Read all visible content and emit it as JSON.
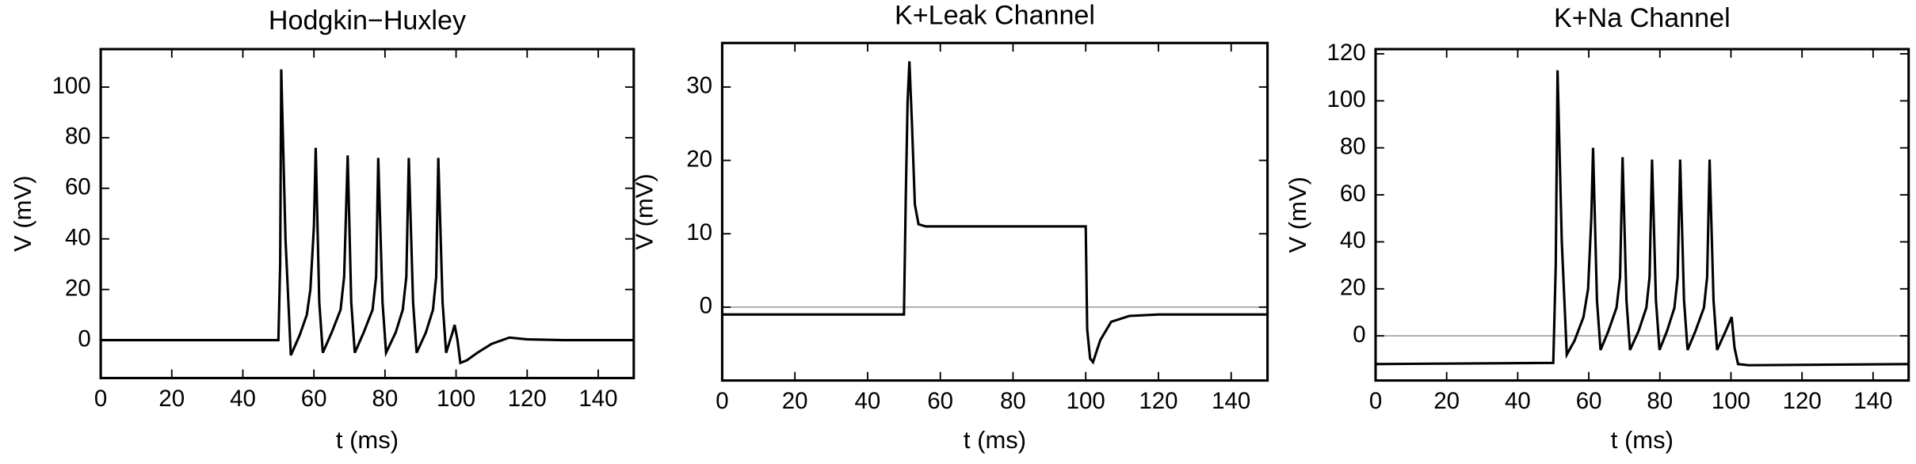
{
  "chart_data": [
    {
      "type": "line",
      "title": "Hodgkin−Huxley",
      "x_label": "t (ms)",
      "y_label": "V (mV)",
      "xlim": [
        0,
        150
      ],
      "ylim": [
        -15,
        115
      ],
      "xticks": [
        0,
        20,
        40,
        60,
        80,
        100,
        120,
        140
      ],
      "yticks": [
        0,
        20,
        40,
        60,
        80,
        100
      ],
      "zero_line": false,
      "x": [
        0,
        50,
        50.5,
        50.8,
        52,
        53.5,
        56,
        58,
        59,
        60,
        60.5,
        61.5,
        62.5,
        65,
        67.5,
        68.5,
        69.5,
        70.5,
        71.5,
        74,
        76.5,
        77.5,
        78.1,
        79.3,
        80.3,
        83,
        85,
        86,
        86.7,
        87.9,
        88.9,
        91.5,
        93.5,
        94.4,
        95,
        96.2,
        97.2,
        99,
        99.6,
        100.4,
        101.2,
        103,
        106,
        110,
        115,
        120,
        130,
        150
      ],
      "series": [
        {
          "name": "V",
          "color": "#000000",
          "values": [
            0,
            0,
            30,
            107,
            40,
            -6,
            2,
            10,
            20,
            45,
            76,
            15,
            -5,
            3,
            12,
            25,
            73,
            15,
            -5,
            3,
            12,
            25,
            72,
            15,
            -5,
            3,
            12,
            25,
            72,
            15,
            -5,
            3,
            12,
            25,
            72,
            15,
            -5,
            3,
            6,
            0,
            -9,
            -8,
            -5,
            -1.5,
            1,
            0.3,
            0,
            0
          ]
        }
      ]
    },
    {
      "type": "line",
      "title": "K+Leak Channel",
      "x_label": "t (ms)",
      "y_label": "V (mV)",
      "xlim": [
        0,
        150
      ],
      "ylim": [
        -10,
        36
      ],
      "xticks": [
        0,
        20,
        40,
        60,
        80,
        100,
        120,
        140
      ],
      "yticks": [
        0,
        10,
        20,
        30
      ],
      "zero_line": true,
      "x": [
        0,
        50,
        50.5,
        51,
        51.5,
        52.2,
        53,
        54,
        56,
        100,
        100.4,
        101.2,
        102,
        104,
        107,
        112,
        120,
        150
      ],
      "series": [
        {
          "name": "V",
          "color": "#000000",
          "values": [
            -1,
            -1,
            15,
            28,
            33.5,
            25,
            14,
            11.3,
            11,
            11,
            -3,
            -7,
            -7.5,
            -4.5,
            -2,
            -1.2,
            -1,
            -1
          ]
        }
      ]
    },
    {
      "type": "line",
      "title": "K+Na Channel",
      "x_label": "t (ms)",
      "y_label": "V (mV)",
      "xlim": [
        0,
        150
      ],
      "ylim": [
        -19,
        122
      ],
      "xticks": [
        0,
        20,
        40,
        60,
        80,
        100,
        120,
        140
      ],
      "yticks": [
        0,
        20,
        40,
        60,
        80,
        100,
        120
      ],
      "zero_line": true,
      "x": [
        0,
        50,
        50.7,
        51.2,
        52.4,
        53.8,
        56,
        58.5,
        59.8,
        60.7,
        61.2,
        62.3,
        63.3,
        65.5,
        67.8,
        68.8,
        69.5,
        70.6,
        71.6,
        74,
        76.2,
        77.1,
        77.8,
        78.9,
        79.9,
        82,
        84.1,
        85,
        85.7,
        86.8,
        87.8,
        90,
        92.4,
        93.3,
        94,
        95.1,
        96.1,
        98.5,
        100.2,
        101,
        102,
        105,
        150
      ],
      "series": [
        {
          "name": "V",
          "color": "#000000",
          "values": [
            -12,
            -11.5,
            30,
            113,
            40,
            -8,
            -2,
            8,
            20,
            50,
            80,
            15,
            -6,
            2,
            12,
            25,
            76,
            15,
            -6,
            2,
            12,
            25,
            75,
            15,
            -6,
            2,
            12,
            25,
            75,
            15,
            -6,
            2,
            12,
            25,
            75,
            15,
            -6,
            2,
            8,
            -5,
            -12,
            -12.5,
            -12
          ]
        }
      ]
    }
  ]
}
